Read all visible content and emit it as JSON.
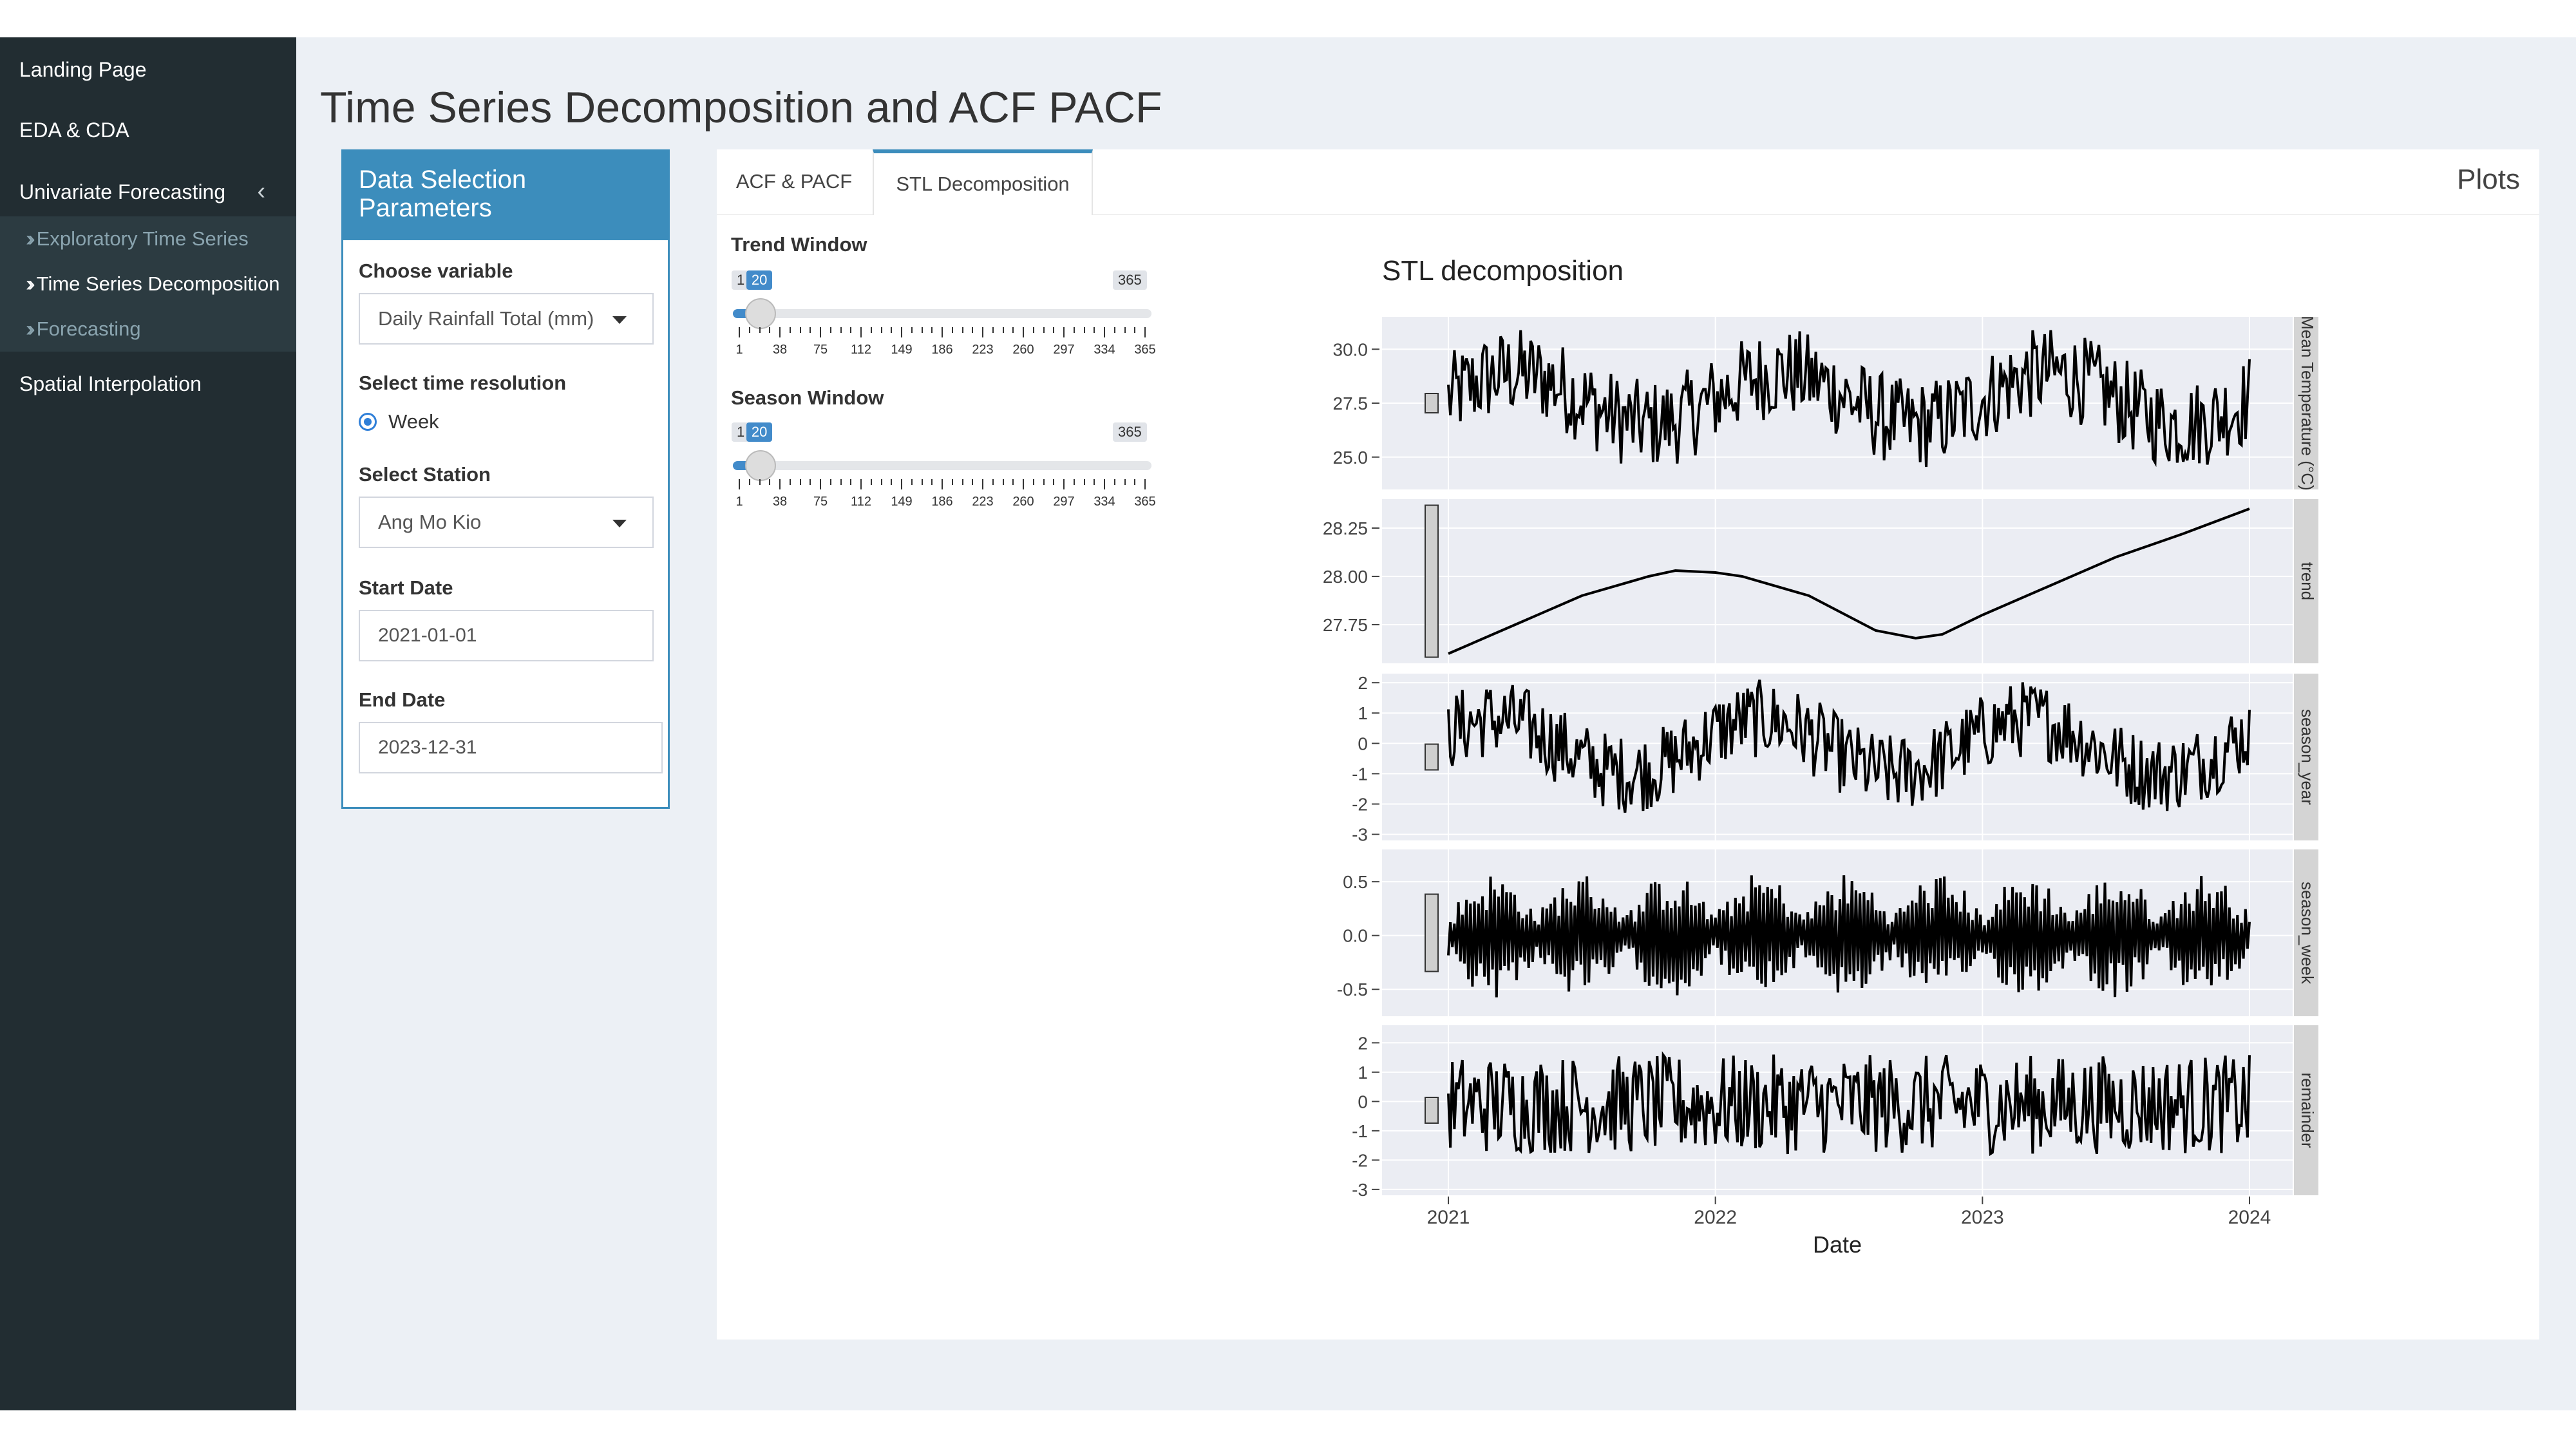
{
  "sidebar": {
    "items": [
      {
        "label": "Landing Page"
      },
      {
        "label": "EDA & CDA"
      },
      {
        "label": "Univariate Forecasting"
      },
      {
        "label": "Spatial Interpolation"
      }
    ],
    "subitems": [
      {
        "label": "Exploratory Time Series"
      },
      {
        "label": "Time Series Decomposition"
      },
      {
        "label": "Forecasting"
      }
    ]
  },
  "page": {
    "title": "Time Series Decomposition and ACF PACF"
  },
  "params": {
    "header": "Data Selection Parameters",
    "variable_label": "Choose variable",
    "variable_value": "Daily Rainfall Total (mm)",
    "resolution_label": "Select time resolution",
    "resolution_option": "Week",
    "station_label": "Select Station",
    "station_value": "Ang Mo Kio",
    "start_label": "Start Date",
    "start_value": "2021-01-01",
    "end_label": "End Date",
    "end_value": "2023-12-31"
  },
  "tabs": {
    "acf": "ACF & PACF",
    "stl": "STL Decomposition",
    "plots_title": "Plots"
  },
  "sliders": {
    "trend": {
      "label": "Trend Window",
      "min": 1,
      "max": 365,
      "value": 20
    },
    "season": {
      "label": "Season Window",
      "min": 1,
      "max": 365,
      "value": 20
    },
    "ticks": [
      "1",
      "38",
      "75",
      "112",
      "149",
      "186",
      "223",
      "260",
      "297",
      "334",
      "365"
    ]
  },
  "chart_data": {
    "type": "line",
    "title": "STL decomposition",
    "xlabel": "Date",
    "x_ticks": [
      "2021",
      "2022",
      "2023",
      "2024"
    ],
    "x_range": [
      2021.0,
      2024.0
    ],
    "panels": [
      {
        "name": "Mean Temperature  (°C)",
        "ylim": [
          23.5,
          31.5
        ],
        "ticks": [
          "25.0",
          "27.5",
          "30.0"
        ],
        "tick_values": [
          25.0,
          27.5,
          30.0
        ]
      },
      {
        "name": "trend",
        "ylim": [
          27.55,
          28.4
        ],
        "ticks": [
          "27.75",
          "28.00",
          "28.25"
        ],
        "tick_values": [
          27.75,
          28.0,
          28.25
        ],
        "points": [
          [
            2021.0,
            27.6
          ],
          [
            2021.25,
            27.75
          ],
          [
            2021.5,
            27.9
          ],
          [
            2021.75,
            28.0
          ],
          [
            2021.85,
            28.03
          ],
          [
            2022.0,
            28.02
          ],
          [
            2022.1,
            28.0
          ],
          [
            2022.35,
            27.9
          ],
          [
            2022.6,
            27.72
          ],
          [
            2022.75,
            27.68
          ],
          [
            2022.85,
            27.7
          ],
          [
            2023.0,
            27.8
          ],
          [
            2023.25,
            27.95
          ],
          [
            2023.5,
            28.1
          ],
          [
            2023.75,
            28.22
          ],
          [
            2024.0,
            28.35
          ]
        ]
      },
      {
        "name": "season_year",
        "ylim": [
          -3.2,
          2.3
        ],
        "ticks": [
          "-3",
          "-2",
          "-1",
          "0",
          "1",
          "2"
        ],
        "tick_values": [
          -3,
          -2,
          -1,
          0,
          1,
          2
        ]
      },
      {
        "name": "season_week",
        "ylim": [
          -0.75,
          0.8
        ],
        "ticks": [
          "-0.5",
          "0.0",
          "0.5"
        ],
        "tick_values": [
          -0.5,
          0.0,
          0.5
        ]
      },
      {
        "name": "remainder",
        "ylim": [
          -3.2,
          2.6
        ],
        "ticks": [
          "-3",
          "-2",
          "-1",
          "0",
          "1",
          "2"
        ],
        "tick_values": [
          -3,
          -2,
          -1,
          0,
          1,
          2
        ]
      }
    ]
  }
}
